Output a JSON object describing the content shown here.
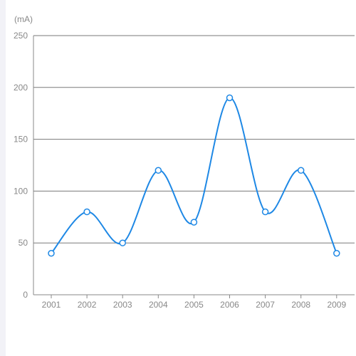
{
  "chart_data": {
    "type": "line",
    "smooth": true,
    "unit_label": "(mA)",
    "categories": [
      "2001",
      "2002",
      "2003",
      "2004",
      "2005",
      "2006",
      "2007",
      "2008",
      "2009"
    ],
    "series": [
      {
        "values": [
          40,
          80,
          50,
          120,
          70,
          190,
          80,
          120,
          40
        ]
      }
    ],
    "ylim": [
      0,
      250
    ],
    "yticks": [
      0,
      50,
      100,
      150,
      200,
      250
    ],
    "grid": true,
    "colors": {
      "line": "#1e88e5",
      "marker_fill": "#ffffff",
      "grid": "#7a7a7a",
      "axis": "#888888",
      "text": "#888888"
    }
  }
}
